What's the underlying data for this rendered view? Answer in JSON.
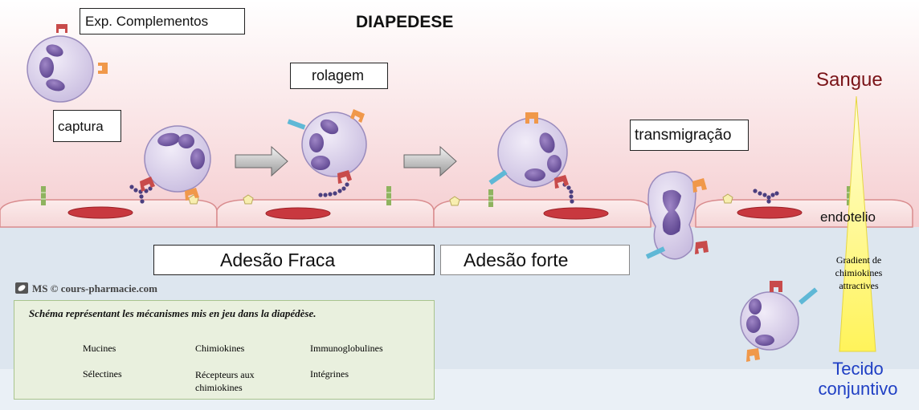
{
  "title": "DIAPEDESE",
  "labels": {
    "exp": "Exp. Complementos",
    "rolagem": "rolagem",
    "captura": "captura",
    "transmigracao": "transmigração",
    "adesao_fraca": "Adesão Fraca",
    "adesao_forte": "Adesão forte",
    "sangue": "Sangue",
    "endotelio": "endotelio",
    "gradient": [
      "Gradient de",
      "chimiokines",
      "attractives"
    ],
    "tecido": [
      "Tecido",
      "conjuntivo"
    ]
  },
  "watermark": "MS © cours-pharmacie.com",
  "legend": {
    "title": "Schéma représentant les mécanismes mis en jeu dans la diapédèse.",
    "items": [
      {
        "key": "mucines",
        "label": "Mucines"
      },
      {
        "key": "chimiokines",
        "label": "Chimiokines"
      },
      {
        "key": "immunoglobulines",
        "label": "Immunoglobulines"
      },
      {
        "key": "selectines",
        "label": "Sélectines"
      },
      {
        "key": "recepteurs",
        "label": "Récepteurs aux"
      },
      {
        "key": "recepteurs2",
        "label": "chimiokines"
      },
      {
        "key": "integrines",
        "label": "Intégrines"
      }
    ]
  },
  "colors": {
    "blood_top": "#ffffff",
    "blood_bottom": "#f6d2d4",
    "tissue": "#dfe7f0",
    "cell": "#d7cde8",
    "nucleus": "#7e62a8",
    "selectine": "#c84b4b",
    "receptor": "#f0984a",
    "integrine": "#5fb8d6",
    "immunoglobuline": "#8fb35f",
    "chimiokine": "#f6eaa8",
    "mucine": "#4b3f7f",
    "endo_nucleus": "#c8383f",
    "sangue": "#7a1418",
    "tecido": "#1f3fc4"
  }
}
